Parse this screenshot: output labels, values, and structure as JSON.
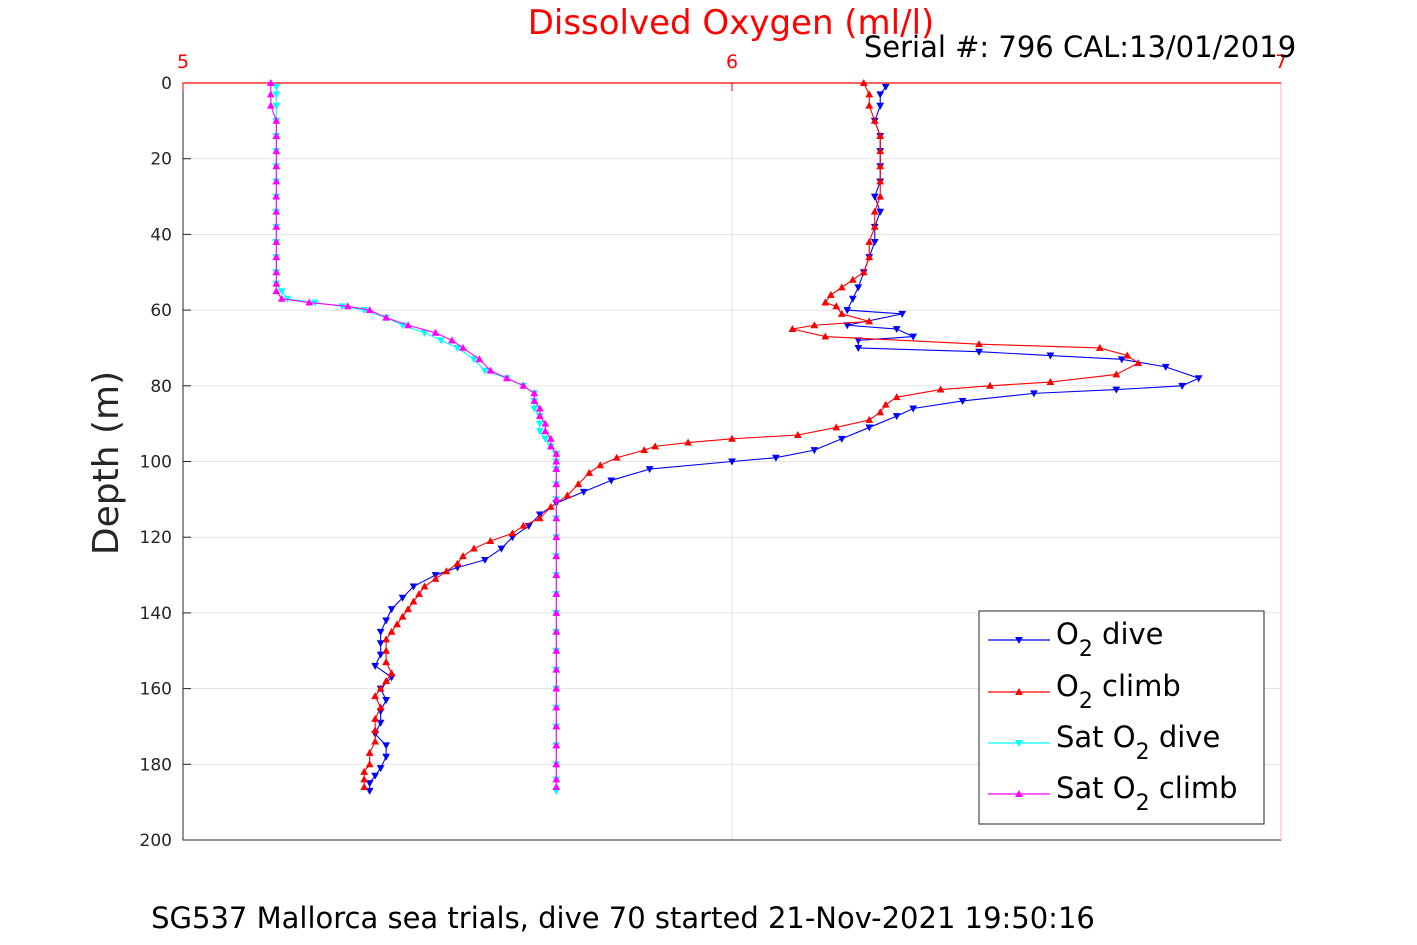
{
  "chart_data": {
    "type": "line",
    "title": "Dissolved Oxygen (ml/l)",
    "subtitle": "Serial #: 796  CAL:13/01/2019",
    "ylabel": "Depth (m)",
    "footer": "SG537 Mallorca sea trials, dive 70 started 21-Nov-2021 19:50:16",
    "xlim": [
      5,
      7
    ],
    "ylim": [
      0,
      200
    ],
    "y_reversed": true,
    "x_axis_position": "top",
    "xticks": [
      "5",
      "6",
      "7"
    ],
    "yticks": [
      "0",
      "20",
      "40",
      "60",
      "80",
      "100",
      "120",
      "140",
      "160",
      "180",
      "200"
    ],
    "grid": true,
    "legend_position": "bottom-right",
    "colors": {
      "title": "#ff0000",
      "xaxis": "#ff0000"
    },
    "series": [
      {
        "id": "o2-dive",
        "legend_main": "O",
        "legend_sub": "2",
        "legend_suffix": " dive",
        "color": "#0000ff",
        "marker": "down",
        "points": [
          [
            6.28,
            1
          ],
          [
            6.27,
            3
          ],
          [
            6.27,
            6
          ],
          [
            6.26,
            10
          ],
          [
            6.27,
            14
          ],
          [
            6.27,
            18
          ],
          [
            6.27,
            22
          ],
          [
            6.27,
            26
          ],
          [
            6.26,
            30
          ],
          [
            6.27,
            34
          ],
          [
            6.26,
            38
          ],
          [
            6.26,
            42
          ],
          [
            6.25,
            46
          ],
          [
            6.24,
            50
          ],
          [
            6.23,
            54
          ],
          [
            6.22,
            57
          ],
          [
            6.21,
            60
          ],
          [
            6.31,
            61
          ],
          [
            6.21,
            64
          ],
          [
            6.3,
            65
          ],
          [
            6.33,
            67
          ],
          [
            6.23,
            68
          ],
          [
            6.23,
            70
          ],
          [
            6.45,
            71
          ],
          [
            6.58,
            72
          ],
          [
            6.71,
            73
          ],
          [
            6.79,
            75
          ],
          [
            6.85,
            78
          ],
          [
            6.82,
            80
          ],
          [
            6.7,
            81
          ],
          [
            6.55,
            82
          ],
          [
            6.42,
            84
          ],
          [
            6.33,
            86
          ],
          [
            6.3,
            88
          ],
          [
            6.25,
            91
          ],
          [
            6.2,
            94
          ],
          [
            6.15,
            97
          ],
          [
            6.08,
            99
          ],
          [
            6.0,
            100
          ],
          [
            5.85,
            102
          ],
          [
            5.78,
            105
          ],
          [
            5.73,
            108
          ],
          [
            5.68,
            111
          ],
          [
            5.65,
            114
          ],
          [
            5.63,
            117
          ],
          [
            5.6,
            120
          ],
          [
            5.58,
            123
          ],
          [
            5.55,
            126
          ],
          [
            5.5,
            128
          ],
          [
            5.46,
            130
          ],
          [
            5.42,
            133
          ],
          [
            5.4,
            136
          ],
          [
            5.38,
            139
          ],
          [
            5.37,
            142
          ],
          [
            5.36,
            145
          ],
          [
            5.36,
            148
          ],
          [
            5.36,
            151
          ],
          [
            5.35,
            154
          ],
          [
            5.38,
            157
          ],
          [
            5.36,
            160
          ],
          [
            5.37,
            163
          ],
          [
            5.36,
            166
          ],
          [
            5.36,
            169
          ],
          [
            5.35,
            172
          ],
          [
            5.37,
            175
          ],
          [
            5.37,
            178
          ],
          [
            5.36,
            181
          ],
          [
            5.35,
            183
          ],
          [
            5.34,
            185
          ],
          [
            5.34,
            187
          ]
        ]
      },
      {
        "id": "o2-climb",
        "legend_main": "O",
        "legend_sub": "2",
        "legend_suffix": " climb",
        "color": "#ff0000",
        "marker": "up",
        "points": [
          [
            6.24,
            0
          ],
          [
            6.25,
            3
          ],
          [
            6.25,
            6
          ],
          [
            6.26,
            10
          ],
          [
            6.27,
            14
          ],
          [
            6.27,
            18
          ],
          [
            6.27,
            22
          ],
          [
            6.27,
            26
          ],
          [
            6.27,
            30
          ],
          [
            6.26,
            34
          ],
          [
            6.26,
            38
          ],
          [
            6.25,
            42
          ],
          [
            6.25,
            46
          ],
          [
            6.24,
            50
          ],
          [
            6.22,
            52
          ],
          [
            6.2,
            54
          ],
          [
            6.18,
            56
          ],
          [
            6.17,
            58
          ],
          [
            6.19,
            59
          ],
          [
            6.2,
            61
          ],
          [
            6.25,
            63
          ],
          [
            6.15,
            64
          ],
          [
            6.11,
            65
          ],
          [
            6.17,
            67
          ],
          [
            6.45,
            69
          ],
          [
            6.67,
            70
          ],
          [
            6.72,
            72
          ],
          [
            6.74,
            74
          ],
          [
            6.7,
            77
          ],
          [
            6.58,
            79
          ],
          [
            6.47,
            80
          ],
          [
            6.38,
            81
          ],
          [
            6.3,
            83
          ],
          [
            6.28,
            85
          ],
          [
            6.27,
            87
          ],
          [
            6.25,
            89
          ],
          [
            6.19,
            91
          ],
          [
            6.12,
            93
          ],
          [
            6.0,
            94
          ],
          [
            5.92,
            95
          ],
          [
            5.86,
            96
          ],
          [
            5.84,
            97
          ],
          [
            5.79,
            99
          ],
          [
            5.76,
            101
          ],
          [
            5.74,
            103
          ],
          [
            5.72,
            106
          ],
          [
            5.7,
            109
          ],
          [
            5.67,
            112
          ],
          [
            5.65,
            115
          ],
          [
            5.62,
            117
          ],
          [
            5.6,
            119
          ],
          [
            5.56,
            121
          ],
          [
            5.53,
            123
          ],
          [
            5.51,
            125
          ],
          [
            5.5,
            127
          ],
          [
            5.48,
            129
          ],
          [
            5.46,
            131
          ],
          [
            5.44,
            133
          ],
          [
            5.43,
            135
          ],
          [
            5.42,
            137
          ],
          [
            5.41,
            139
          ],
          [
            5.4,
            141
          ],
          [
            5.39,
            143
          ],
          [
            5.38,
            145
          ],
          [
            5.37,
            147
          ],
          [
            5.37,
            150
          ],
          [
            5.37,
            153
          ],
          [
            5.38,
            156
          ],
          [
            5.37,
            158
          ],
          [
            5.36,
            160
          ],
          [
            5.35,
            162
          ],
          [
            5.36,
            165
          ],
          [
            5.35,
            168
          ],
          [
            5.35,
            171
          ],
          [
            5.35,
            174
          ],
          [
            5.34,
            177
          ],
          [
            5.34,
            180
          ],
          [
            5.33,
            182
          ],
          [
            5.33,
            184
          ],
          [
            5.33,
            186
          ]
        ]
      },
      {
        "id": "sat-o2-dive",
        "legend_main": "Sat O",
        "legend_sub": "2",
        "legend_suffix": " dive",
        "color": "#00ffff",
        "marker": "down",
        "points": [
          [
            5.17,
            1
          ],
          [
            5.17,
            3
          ],
          [
            5.17,
            6
          ],
          [
            5.17,
            10
          ],
          [
            5.17,
            14
          ],
          [
            5.17,
            18
          ],
          [
            5.17,
            22
          ],
          [
            5.17,
            26
          ],
          [
            5.17,
            30
          ],
          [
            5.17,
            34
          ],
          [
            5.17,
            38
          ],
          [
            5.17,
            42
          ],
          [
            5.17,
            46
          ],
          [
            5.17,
            50
          ],
          [
            5.17,
            53
          ],
          [
            5.18,
            55
          ],
          [
            5.19,
            57
          ],
          [
            5.24,
            58
          ],
          [
            5.29,
            59
          ],
          [
            5.33,
            60
          ],
          [
            5.37,
            62
          ],
          [
            5.4,
            64
          ],
          [
            5.44,
            66
          ],
          [
            5.47,
            68
          ],
          [
            5.5,
            70
          ],
          [
            5.53,
            73
          ],
          [
            5.55,
            76
          ],
          [
            5.59,
            78
          ],
          [
            5.62,
            80
          ],
          [
            5.64,
            82
          ],
          [
            5.64,
            84
          ],
          [
            5.64,
            86
          ],
          [
            5.65,
            88
          ],
          [
            5.65,
            90
          ],
          [
            5.65,
            92
          ],
          [
            5.66,
            94
          ],
          [
            5.67,
            96
          ],
          [
            5.68,
            98
          ],
          [
            5.68,
            100
          ],
          [
            5.68,
            102
          ],
          [
            5.68,
            106
          ],
          [
            5.68,
            110
          ],
          [
            5.68,
            115
          ],
          [
            5.68,
            120
          ],
          [
            5.68,
            125
          ],
          [
            5.68,
            130
          ],
          [
            5.68,
            135
          ],
          [
            5.68,
            140
          ],
          [
            5.68,
            145
          ],
          [
            5.68,
            150
          ],
          [
            5.68,
            155
          ],
          [
            5.68,
            160
          ],
          [
            5.68,
            165
          ],
          [
            5.68,
            170
          ],
          [
            5.68,
            175
          ],
          [
            5.68,
            180
          ],
          [
            5.68,
            184
          ],
          [
            5.68,
            187
          ]
        ]
      },
      {
        "id": "sat-o2-climb",
        "legend_main": "Sat O",
        "legend_sub": "2",
        "legend_suffix": " climb",
        "color": "#ff00ff",
        "marker": "up",
        "points": [
          [
            5.16,
            0
          ],
          [
            5.16,
            3
          ],
          [
            5.16,
            6
          ],
          [
            5.17,
            10
          ],
          [
            5.17,
            14
          ],
          [
            5.17,
            18
          ],
          [
            5.17,
            22
          ],
          [
            5.17,
            26
          ],
          [
            5.17,
            30
          ],
          [
            5.17,
            34
          ],
          [
            5.17,
            38
          ],
          [
            5.17,
            42
          ],
          [
            5.17,
            46
          ],
          [
            5.17,
            50
          ],
          [
            5.17,
            53
          ],
          [
            5.17,
            55
          ],
          [
            5.18,
            57
          ],
          [
            5.23,
            58
          ],
          [
            5.3,
            59
          ],
          [
            5.34,
            60
          ],
          [
            5.37,
            62
          ],
          [
            5.41,
            64
          ],
          [
            5.46,
            66
          ],
          [
            5.49,
            68
          ],
          [
            5.51,
            70
          ],
          [
            5.54,
            73
          ],
          [
            5.56,
            76
          ],
          [
            5.59,
            78
          ],
          [
            5.62,
            80
          ],
          [
            5.64,
            82
          ],
          [
            5.64,
            84
          ],
          [
            5.65,
            86
          ],
          [
            5.65,
            88
          ],
          [
            5.66,
            90
          ],
          [
            5.66,
            92
          ],
          [
            5.67,
            94
          ],
          [
            5.67,
            96
          ],
          [
            5.68,
            98
          ],
          [
            5.68,
            100
          ],
          [
            5.68,
            102
          ],
          [
            5.68,
            106
          ],
          [
            5.68,
            110
          ],
          [
            5.68,
            115
          ],
          [
            5.68,
            120
          ],
          [
            5.68,
            125
          ],
          [
            5.68,
            130
          ],
          [
            5.68,
            135
          ],
          [
            5.68,
            140
          ],
          [
            5.68,
            145
          ],
          [
            5.68,
            150
          ],
          [
            5.68,
            155
          ],
          [
            5.68,
            160
          ],
          [
            5.68,
            165
          ],
          [
            5.68,
            170
          ],
          [
            5.68,
            175
          ],
          [
            5.68,
            180
          ],
          [
            5.68,
            184
          ],
          [
            5.68,
            186
          ]
        ]
      }
    ]
  }
}
